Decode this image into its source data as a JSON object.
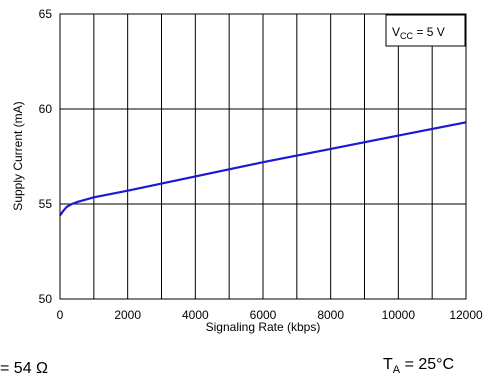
{
  "chart_data": {
    "type": "line",
    "xlabel": "Signaling Rate (kbps)",
    "ylabel": "Supply Current (mA)",
    "xlim": [
      0,
      12000
    ],
    "ylim": [
      50,
      65
    ],
    "x_ticks": [
      0,
      2000,
      4000,
      6000,
      8000,
      10000,
      12000
    ],
    "x_tick_labels": [
      "0",
      "2000",
      "4000",
      "6000",
      "8000",
      "10000",
      "12000"
    ],
    "y_ticks": [
      50,
      55,
      60,
      65
    ],
    "y_tick_labels": [
      "50",
      "55",
      "60",
      "65"
    ],
    "grid": true,
    "legend_box": {
      "main": "V",
      "sub": "CC",
      "rest": " = 5 V",
      "placement": "top-right"
    },
    "series": [
      {
        "color": "#1a1ad6",
        "x": [
          0,
          100,
          200,
          350,
          500,
          700,
          1000,
          2000,
          4000,
          6000,
          8000,
          10000,
          12000
        ],
        "y": [
          54.4,
          54.65,
          54.85,
          55.0,
          55.1,
          55.2,
          55.35,
          55.7,
          56.45,
          57.2,
          57.9,
          58.6,
          59.3
        ]
      }
    ]
  },
  "footnotes": {
    "left": "= 54 Ω",
    "right_main": "T",
    "right_sub": "A",
    "right_rest": " = 25°C"
  }
}
